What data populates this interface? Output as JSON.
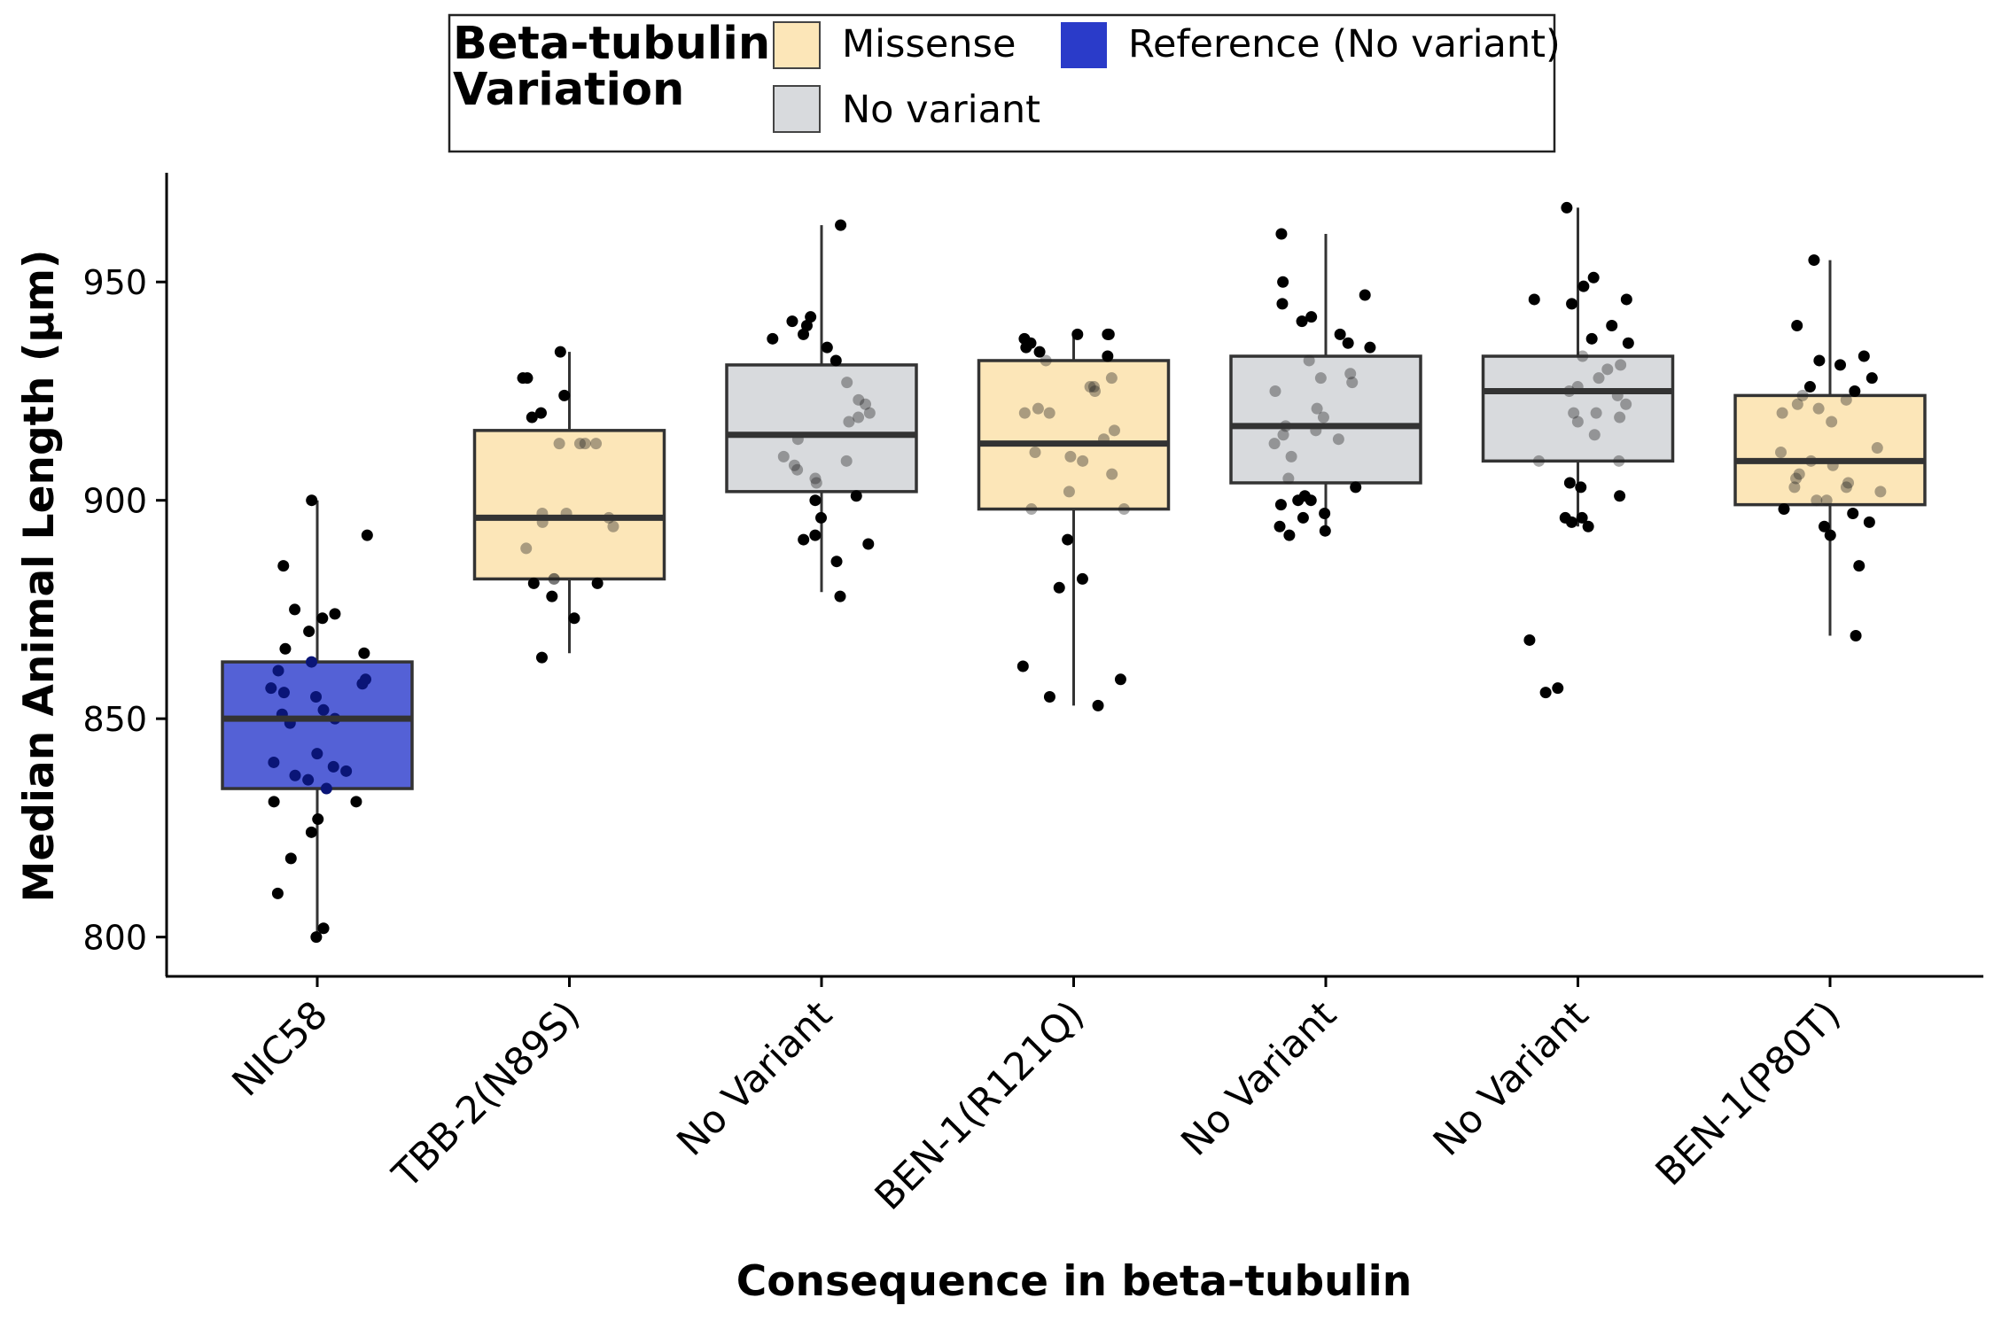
{
  "chart_data": {
    "type": "box",
    "title": "",
    "xlabel": "Consequence in beta-tubulin",
    "ylabel": "Median Animal Length (µm)",
    "ylim": [
      791,
      975
    ],
    "yticks": [
      800,
      850,
      900,
      950
    ],
    "grid": false,
    "legend": {
      "title_lines": [
        "Beta-tubulin",
        "Variation"
      ],
      "placement": "top",
      "entries": [
        {
          "label": "Missense",
          "color": "#fce6b8"
        },
        {
          "label": "No variant",
          "color": "#d8dadd"
        },
        {
          "label": "Reference (No variant)",
          "color": "#2a3bc9"
        }
      ]
    },
    "categories": [
      "NIC58",
      "TBB-2(N89S)",
      "No Variant",
      "BEN-1(R121Q)",
      "No Variant",
      "No Variant",
      "BEN-1(P80T)"
    ],
    "boxes": [
      {
        "category": "NIC58",
        "group": "Reference (No variant)",
        "whisker_low": 800,
        "q1": 834,
        "median": 850,
        "q3": 863,
        "whisker_high": 900,
        "points": [
          800,
          802,
          810,
          818,
          824,
          827,
          831,
          831,
          834,
          836,
          837,
          838,
          839,
          840,
          842,
          849,
          850,
          851,
          852,
          855,
          856,
          857,
          858,
          859,
          861,
          863,
          865,
          866,
          870,
          873,
          874,
          875,
          885,
          892,
          900
        ]
      },
      {
        "category": "TBB-2(N89S)",
        "group": "Missense",
        "whisker_low": 865,
        "q1": 882,
        "median": 896,
        "q3": 916,
        "whisker_high": 934,
        "points": [
          864,
          873,
          878,
          881,
          881,
          882,
          882,
          889,
          894,
          895,
          896,
          897,
          897,
          913,
          913,
          913,
          913,
          919,
          920,
          924,
          928,
          928,
          934
        ]
      },
      {
        "category": "No Variant",
        "group": "No variant",
        "whisker_low": 879,
        "q1": 902,
        "median": 915,
        "q3": 931,
        "whisker_high": 963,
        "points": [
          878,
          886,
          890,
          891,
          892,
          896,
          900,
          901,
          904,
          905,
          907,
          908,
          909,
          910,
          914,
          918,
          919,
          920,
          922,
          923,
          927,
          932,
          935,
          937,
          938,
          940,
          941,
          942,
          963
        ]
      },
      {
        "category": "BEN-1(R121Q)",
        "group": "Missense",
        "whisker_low": 853,
        "q1": 898,
        "median": 913,
        "q3": 932,
        "whisker_high": 938,
        "points": [
          853,
          855,
          859,
          862,
          880,
          882,
          891,
          898,
          898,
          902,
          906,
          909,
          910,
          911,
          914,
          916,
          920,
          920,
          921,
          925,
          926,
          926,
          928,
          932,
          933,
          934,
          935,
          936,
          937,
          938,
          938,
          938
        ]
      },
      {
        "category": "No Variant",
        "group": "No variant",
        "whisker_low": 893,
        "q1": 904,
        "median": 917,
        "q3": 933,
        "whisker_high": 961,
        "points": [
          892,
          893,
          894,
          896,
          897,
          899,
          900,
          900,
          901,
          903,
          905,
          910,
          913,
          914,
          915,
          916,
          917,
          919,
          921,
          925,
          927,
          928,
          929,
          932,
          935,
          936,
          938,
          941,
          942,
          945,
          947,
          950,
          961
        ]
      },
      {
        "category": "No Variant",
        "group": "No variant",
        "whisker_low": 894,
        "q1": 909,
        "median": 925,
        "q3": 933,
        "whisker_high": 967,
        "points": [
          856,
          857,
          868,
          894,
          895,
          896,
          896,
          901,
          903,
          904,
          909,
          909,
          915,
          918,
          919,
          920,
          920,
          922,
          924,
          925,
          926,
          928,
          930,
          931,
          933,
          936,
          937,
          940,
          945,
          946,
          946,
          949,
          951,
          967
        ]
      },
      {
        "category": "BEN-1(P80T)",
        "group": "Missense",
        "whisker_low": 869,
        "q1": 899,
        "median": 909,
        "q3": 924,
        "whisker_high": 955,
        "points": [
          869,
          885,
          892,
          894,
          895,
          897,
          898,
          900,
          900,
          902,
          903,
          903,
          904,
          905,
          906,
          908,
          909,
          911,
          912,
          918,
          920,
          921,
          922,
          923,
          924,
          925,
          926,
          928,
          931,
          932,
          933,
          940,
          955
        ]
      }
    ]
  }
}
